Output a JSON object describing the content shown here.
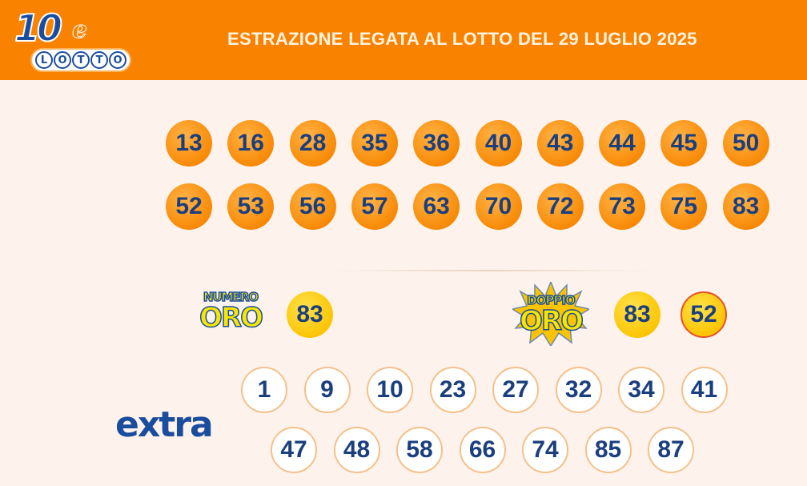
{
  "header": {
    "logo_text": "10eLOTTO",
    "title": "ESTRAZIONE LEGATA AL LOTTO DEL 29 LUGLIO 2025"
  },
  "main_numbers": [
    13,
    16,
    28,
    35,
    36,
    40,
    43,
    44,
    45,
    50,
    52,
    53,
    56,
    57,
    63,
    70,
    72,
    73,
    75,
    83
  ],
  "numero_oro": {
    "label_top": "NUMERO",
    "label_bottom": "ORO",
    "value": "83"
  },
  "doppio_oro": {
    "label_top": "DOPPIO",
    "label_bottom": "ORO",
    "values": [
      "83",
      "52"
    ]
  },
  "extra": {
    "label": "extra",
    "numbers": [
      1,
      9,
      10,
      23,
      27,
      32,
      34,
      41,
      47,
      48,
      58,
      66,
      74,
      85,
      87
    ]
  },
  "colors": {
    "header": "#f98200",
    "background": "#fdf3ec",
    "number_text": "#1b3f7e",
    "main_ball": "#f88a06",
    "gold_ball": "#fbc300"
  }
}
